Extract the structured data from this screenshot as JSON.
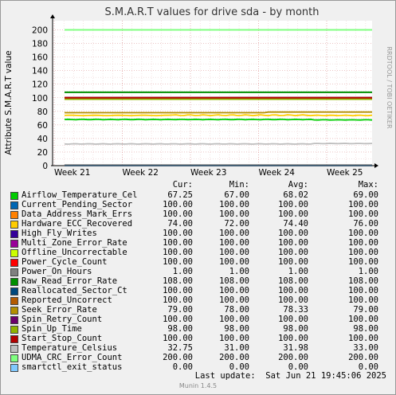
{
  "chart_data": {
    "type": "line",
    "title": "S.M.A.R.T values for drive sda - by month",
    "ylabel": "Attribute S.M.A.R.T value",
    "watermark": "RRDTOOL / TOBI OETIKER",
    "x_ticks": [
      "Week 21",
      "Week 22",
      "Week 23",
      "Week 24",
      "Week 25"
    ],
    "y_ticks": [
      "0",
      "20",
      "40",
      "60",
      "80",
      "100",
      "120",
      "140",
      "160",
      "180",
      "200"
    ],
    "ylim": [
      0,
      210
    ],
    "grid": true,
    "series": [
      {
        "name": "Airflow_Temperature_Cel",
        "color": "#00cc00",
        "values": [
          67.25,
          67.0,
          68.02,
          69.0
        ],
        "cur": "67.25",
        "min": "67.00",
        "avg": "68.02",
        "max": "69.00"
      },
      {
        "name": "Current_Pending_Sector",
        "color": "#0066b3",
        "values": [
          100,
          100,
          100,
          100
        ],
        "cur": "100.00",
        "min": "100.00",
        "avg": "100.00",
        "max": "100.00"
      },
      {
        "name": "Data_Address_Mark_Errs",
        "color": "#ff8000",
        "values": [
          100,
          100,
          100,
          100
        ],
        "cur": "100.00",
        "min": "100.00",
        "avg": "100.00",
        "max": "100.00"
      },
      {
        "name": "Hardware_ECC_Recovered",
        "color": "#ffcc00",
        "values": [
          74.0,
          72.0,
          74.4,
          76.0
        ],
        "cur": "74.00",
        "min": "72.00",
        "avg": "74.40",
        "max": "76.00"
      },
      {
        "name": "High_Fly_Writes",
        "color": "#330099",
        "values": [
          100,
          100,
          100,
          100
        ],
        "cur": "100.00",
        "min": "100.00",
        "avg": "100.00",
        "max": "100.00"
      },
      {
        "name": "Multi_Zone_Error_Rate",
        "color": "#990099",
        "values": [
          100,
          100,
          100,
          100
        ],
        "cur": "100.00",
        "min": "100.00",
        "avg": "100.00",
        "max": "100.00"
      },
      {
        "name": "Offline_Uncorrectable",
        "color": "#ccff00",
        "values": [
          100,
          100,
          100,
          100
        ],
        "cur": "100.00",
        "min": "100.00",
        "avg": "100.00",
        "max": "100.00"
      },
      {
        "name": "Power_Cycle_Count",
        "color": "#ff0000",
        "values": [
          100,
          100,
          100,
          100
        ],
        "cur": "100.00",
        "min": "100.00",
        "avg": "100.00",
        "max": "100.00"
      },
      {
        "name": "Power_On_Hours",
        "color": "#808080",
        "values": [
          1,
          1,
          1,
          1
        ],
        "cur": "1.00",
        "min": "1.00",
        "avg": "1.00",
        "max": "1.00"
      },
      {
        "name": "Raw_Read_Error_Rate",
        "color": "#008f00",
        "values": [
          108,
          108,
          108,
          108
        ],
        "cur": "108.00",
        "min": "108.00",
        "avg": "108.00",
        "max": "108.00"
      },
      {
        "name": "Reallocated_Sector_Ct",
        "color": "#00487d",
        "values": [
          100,
          100,
          100,
          100
        ],
        "cur": "100.00",
        "min": "100.00",
        "avg": "100.00",
        "max": "100.00"
      },
      {
        "name": "Reported_Uncorrect",
        "color": "#b35a00",
        "values": [
          100,
          100,
          100,
          100
        ],
        "cur": "100.00",
        "min": "100.00",
        "avg": "100.00",
        "max": "100.00"
      },
      {
        "name": "Seek_Error_Rate",
        "color": "#b38f00",
        "values": [
          79.0,
          78.0,
          78.33,
          79.0
        ],
        "cur": "79.00",
        "min": "78.00",
        "avg": "78.33",
        "max": "79.00"
      },
      {
        "name": "Spin_Retry_Count",
        "color": "#6b006b",
        "values": [
          100,
          100,
          100,
          100
        ],
        "cur": "100.00",
        "min": "100.00",
        "avg": "100.00",
        "max": "100.00"
      },
      {
        "name": "Spin_Up_Time",
        "color": "#8fb300",
        "values": [
          98,
          98,
          98,
          98
        ],
        "cur": "98.00",
        "min": "98.00",
        "avg": "98.00",
        "max": "98.00"
      },
      {
        "name": "Start_Stop_Count",
        "color": "#b30000",
        "values": [
          100,
          100,
          100,
          100
        ],
        "cur": "100.00",
        "min": "100.00",
        "avg": "100.00",
        "max": "100.00"
      },
      {
        "name": "Temperature_Celsius",
        "color": "#bebebe",
        "values": [
          32.75,
          31.0,
          31.98,
          33.0
        ],
        "cur": "32.75",
        "min": "31.00",
        "avg": "31.98",
        "max": "33.00"
      },
      {
        "name": "UDMA_CRC_Error_Count",
        "color": "#80ff80",
        "values": [
          200,
          200,
          200,
          200
        ],
        "cur": "200.00",
        "min": "200.00",
        "avg": "200.00",
        "max": "200.00"
      },
      {
        "name": "smartctl_exit_status",
        "color": "#80c9ff",
        "values": [
          0,
          0,
          0,
          0
        ],
        "cur": "0.00",
        "min": "0.00",
        "avg": "0.00",
        "max": "0.00"
      }
    ]
  },
  "legend_headers": {
    "cur": "Cur:",
    "min": "Min:",
    "avg": "Avg:",
    "max": "Max:"
  },
  "footer": {
    "last_update": "Last update:  Sat Jun 21 19:45:06 2025",
    "version": "Munin 1.4.5"
  }
}
